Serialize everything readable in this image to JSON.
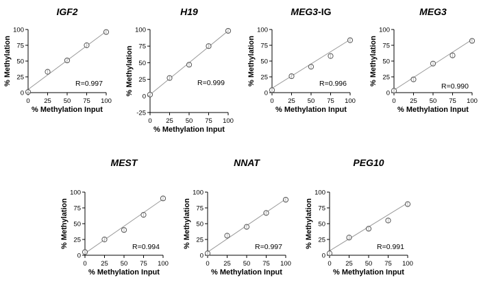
{
  "chart_data": [
    {
      "type": "scatter",
      "title_italic": "IGF2",
      "title_suffix": "",
      "xlabel": "% Methylation Input",
      "ylabel": "% Methylation",
      "xlim": [
        0,
        100
      ],
      "ylim": [
        0,
        100
      ],
      "xticks": [
        0,
        25,
        50,
        75,
        100
      ],
      "yticks": [
        0,
        25,
        50,
        75,
        100
      ],
      "x": [
        0,
        25,
        50,
        75,
        100
      ],
      "y": [
        1,
        33,
        51,
        75,
        96
      ],
      "fit": [
        [
          0,
          5
        ],
        [
          100,
          97
        ]
      ],
      "r_label": "R=0.997"
    },
    {
      "type": "scatter",
      "title_italic": "H19",
      "title_suffix": "",
      "xlabel": "% Methylation Input",
      "ylabel": "% Methylation",
      "xlim": [
        0,
        100
      ],
      "ylim": [
        -25,
        100
      ],
      "xticks": [
        0,
        25,
        50,
        75,
        100
      ],
      "yticks": [
        -25,
        0,
        25,
        50,
        75,
        100
      ],
      "x": [
        0,
        25,
        50,
        75,
        100
      ],
      "y": [
        2,
        27,
        47,
        75,
        98
      ],
      "fit": [
        [
          0,
          2
        ],
        [
          100,
          98
        ]
      ],
      "r_label": "R=0.999"
    },
    {
      "type": "scatter",
      "title_italic": "MEG3",
      "title_suffix": "-IG",
      "xlabel": "% Methylation Input",
      "ylabel": "% Methylation",
      "xlim": [
        0,
        100
      ],
      "ylim": [
        0,
        100
      ],
      "xticks": [
        0,
        25,
        50,
        75,
        100
      ],
      "yticks": [
        0,
        25,
        50,
        75,
        100
      ],
      "x": [
        0,
        25,
        50,
        75,
        100
      ],
      "y": [
        4,
        26,
        41,
        58,
        83
      ],
      "fit": [
        [
          0,
          7
        ],
        [
          100,
          84
        ]
      ],
      "r_label": "R=0.996"
    },
    {
      "type": "scatter",
      "title_italic": "MEG3",
      "title_suffix": "",
      "xlabel": "% Methylation Input",
      "ylabel": "% Methylation",
      "xlim": [
        0,
        100
      ],
      "ylim": [
        0,
        100
      ],
      "xticks": [
        0,
        25,
        50,
        75,
        100
      ],
      "yticks": [
        0,
        25,
        50,
        75,
        100
      ],
      "x": [
        0,
        25,
        50,
        75,
        100
      ],
      "y": [
        3,
        21,
        46,
        59,
        82
      ],
      "fit": [
        [
          0,
          4
        ],
        [
          100,
          84
        ]
      ],
      "r_label": "R=0.990"
    },
    {
      "type": "scatter",
      "title_italic": "MEST",
      "title_suffix": "",
      "xlabel": "% Methylation Input",
      "ylabel": "% Methylation",
      "xlim": [
        0,
        100
      ],
      "ylim": [
        0,
        100
      ],
      "xticks": [
        0,
        25,
        50,
        75,
        100
      ],
      "yticks": [
        0,
        25,
        50,
        75,
        100
      ],
      "x": [
        0,
        25,
        50,
        75,
        100
      ],
      "y": [
        5,
        25,
        40,
        64,
        90
      ],
      "fit": [
        [
          0,
          3
        ],
        [
          100,
          89
        ]
      ],
      "r_label": "R=0.994"
    },
    {
      "type": "scatter",
      "title_italic": "NNAT",
      "title_suffix": "",
      "xlabel": "% Methylation Input",
      "ylabel": "% Methylation",
      "xlim": [
        0,
        100
      ],
      "ylim": [
        0,
        100
      ],
      "xticks": [
        0,
        25,
        50,
        75,
        100
      ],
      "yticks": [
        0,
        25,
        50,
        75,
        100
      ],
      "x": [
        0,
        25,
        50,
        75,
        100
      ],
      "y": [
        3,
        31,
        45,
        67,
        88
      ],
      "fit": [
        [
          0,
          5
        ],
        [
          100,
          89
        ]
      ],
      "r_label": "R=0.997"
    },
    {
      "type": "scatter",
      "title_italic": "PEG10",
      "title_suffix": "",
      "xlabel": "% Methylation Input",
      "ylabel": "% Methylation",
      "xlim": [
        0,
        100
      ],
      "ylim": [
        0,
        100
      ],
      "xticks": [
        0,
        25,
        50,
        75,
        100
      ],
      "yticks": [
        0,
        25,
        50,
        75,
        100
      ],
      "x": [
        0,
        25,
        50,
        75,
        100
      ],
      "y": [
        3,
        28,
        42,
        55,
        81
      ],
      "fit": [
        [
          0,
          7
        ],
        [
          100,
          83
        ]
      ],
      "r_label": "R=0.991"
    }
  ],
  "style": {
    "axis_color": "#000000",
    "fit_color": "#999999",
    "marker_edge": "#555555"
  }
}
